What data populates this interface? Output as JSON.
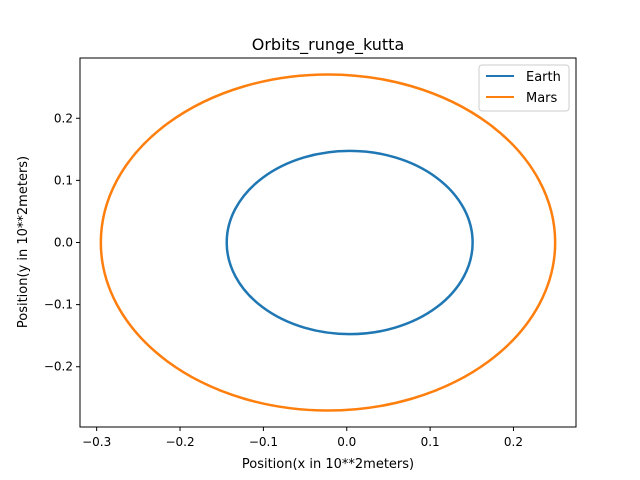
{
  "chart_data": {
    "type": "line",
    "title": "Orbits_runge_kutta",
    "xlabel": "Position(x in 10**2meters)",
    "ylabel": "Position(y in 10**2meters)",
    "xlim": [
      -0.32,
      0.275
    ],
    "ylim": [
      -0.297,
      0.297
    ],
    "xticks": [
      -0.3,
      -0.2,
      -0.1,
      0.0,
      0.1,
      0.2
    ],
    "xtick_labels": [
      "−0.3",
      "−0.2",
      "−0.1",
      "0.0",
      "0.1",
      "0.2"
    ],
    "yticks": [
      -0.2,
      -0.1,
      0.0,
      0.1,
      0.2
    ],
    "ytick_labels": [
      "−0.2",
      "−0.1",
      "0.0",
      "0.1",
      "0.2"
    ],
    "grid": false,
    "legend_position": "top-right",
    "series": [
      {
        "name": "Earth",
        "color": "#1f77b4",
        "shape": "ellipse",
        "center": [
          0.0035,
          0.0
        ],
        "radius_x": 0.1475,
        "radius_y": 0.1475
      },
      {
        "name": "Mars",
        "color": "#ff7f0e",
        "shape": "ellipse",
        "center": [
          -0.0225,
          0.0
        ],
        "radius_x": 0.2725,
        "radius_y": 0.2705
      }
    ]
  }
}
